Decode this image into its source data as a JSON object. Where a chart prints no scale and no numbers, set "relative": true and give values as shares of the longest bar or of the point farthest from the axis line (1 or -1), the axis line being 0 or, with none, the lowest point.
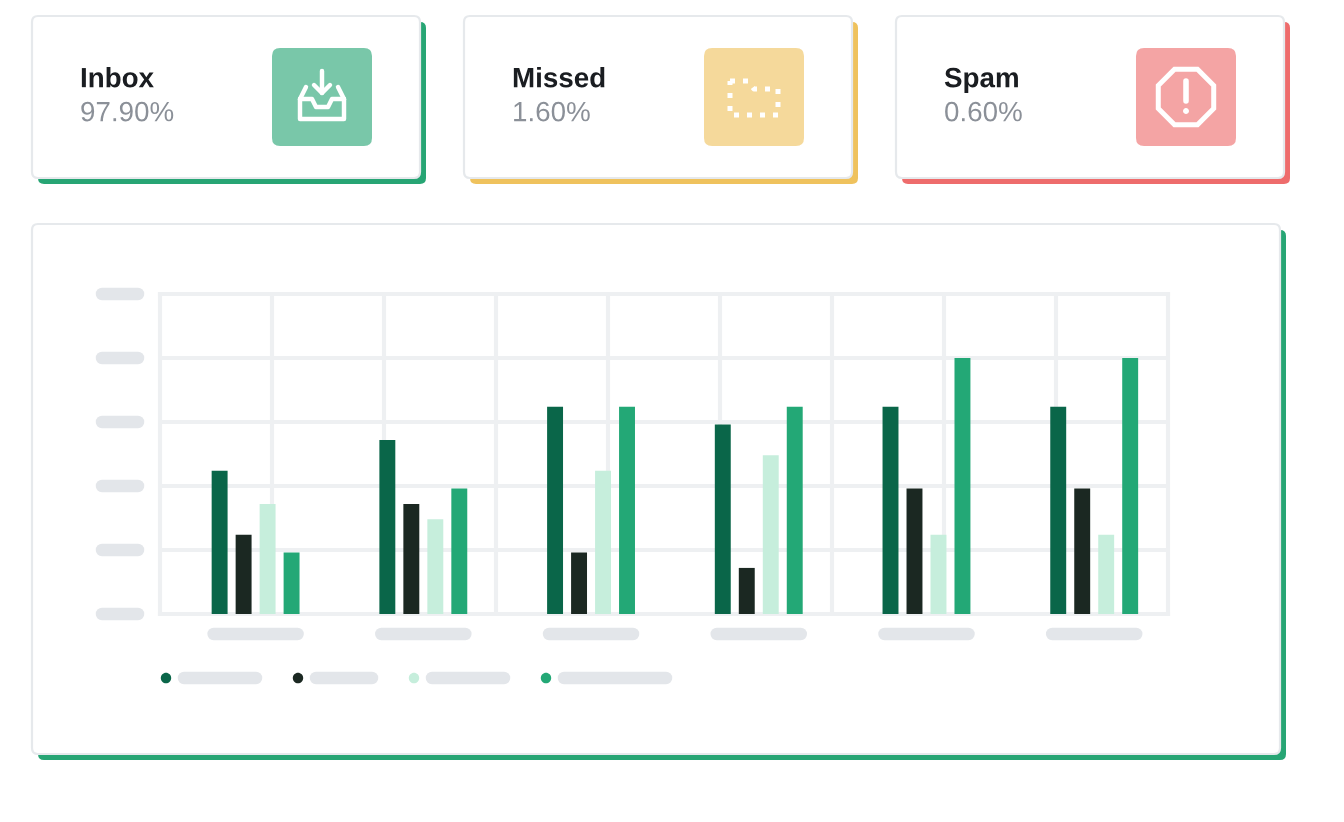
{
  "chart_data": [
    {
      "type": "other",
      "title": "Inbox",
      "subtitle": "97.90%",
      "colors": [
        "#27a574"
      ]
    },
    {
      "type": "other",
      "title": "Missed",
      "subtitle": "1.60%",
      "colors": [
        "#efc25d"
      ]
    },
    {
      "type": "other",
      "title": "Spam",
      "subtitle": "0.60%",
      "colors": [
        "#ee6c6c"
      ]
    },
    {
      "type": "bar",
      "relative": true,
      "categories": [
        null,
        null,
        null,
        null,
        null,
        null
      ],
      "grid": true,
      "series": [
        {
          "color": "#0a6649",
          "values": [
            0.56,
            0.68,
            0.81,
            0.74,
            0.81,
            0.81
          ]
        },
        {
          "color": "#1b2822",
          "values": [
            0.31,
            0.43,
            0.24,
            0.18,
            0.49,
            0.49
          ]
        },
        {
          "color": "#c6eedc",
          "values": [
            0.43,
            0.37,
            0.56,
            0.62,
            0.31,
            0.31
          ]
        },
        {
          "color": "#23a876",
          "values": [
            0.24,
            0.49,
            0.81,
            0.81,
            1,
            1
          ]
        }
      ]
    }
  ]
}
